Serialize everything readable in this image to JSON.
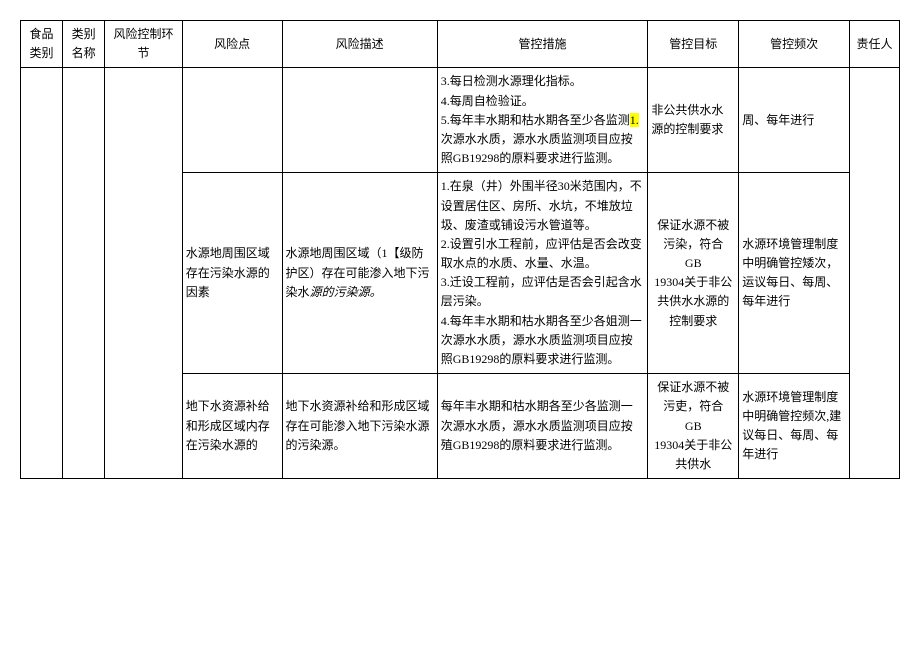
{
  "headers": {
    "col1": "食品类别",
    "col2": "类别名称",
    "col3": "风险控制环节",
    "col4": "风险点",
    "col5": "风险描述",
    "col6": "管控措施",
    "col7": "管控目标",
    "col8": "管控频次",
    "col9": "责任人"
  },
  "rows": [
    {
      "riskpoint": "",
      "riskdesc": "",
      "measures_prefix": "3.每日检测水源理化指标。\n4.每周自检验证。\n5.每年丰水期和枯水期各至少各监测",
      "measures_highlight": "1.",
      "measures_suffix": "次源水水质，源水水质监测项目应按照GB19298的原料要求进行监测。",
      "target": "非公共供水水源的控制要求",
      "freq": "周、每年进行"
    },
    {
      "riskpoint": "水源地周围区域存在污染水源的因素",
      "riskdesc_plain": "水源地周围区域（1【级防护区）存在可能渗入地下污染水",
      "riskdesc_italic": "源的污染源。",
      "measures": "1.在泉（井）外围半径30米范围内，不设置居住区、房所、水坑，不堆放垃圾、废渣或铺设污水管道等。\n2.设置引水工程前，应评估是否会改变取水点的水质、水量、水温。\n3.迁设工程前，应评估是否会引起含水层污染。\n4.每年丰水期和枯水期各至少各姐测一次源水水质，源水水质监测项目应按照GB19298的原料要求进行监测。",
      "target": "保证水源不被污染，符合\nGB\n19304关于非公共供水水源的控制要求",
      "freq": "水源环境管理制度中明确管控矮次，运议每日、每周、每年进行"
    },
    {
      "riskpoint": "地下水资源补给和形成区域内存在污染水源的",
      "riskdesc": "地下水资源补给和形成区域存在可能渗入地下污染水源的污染源。",
      "measures": "每年丰水期和枯水期各至少各监测一次源水水质，源水水质监测项目应按殖GB19298的原料要求进行监测。",
      "target": "保证水源不被污吏，符合\nGB\n19304关于非公共供水",
      "freq": "水源环境管理制度中明确管控频次,建议每日、每周、每年进行"
    }
  ]
}
